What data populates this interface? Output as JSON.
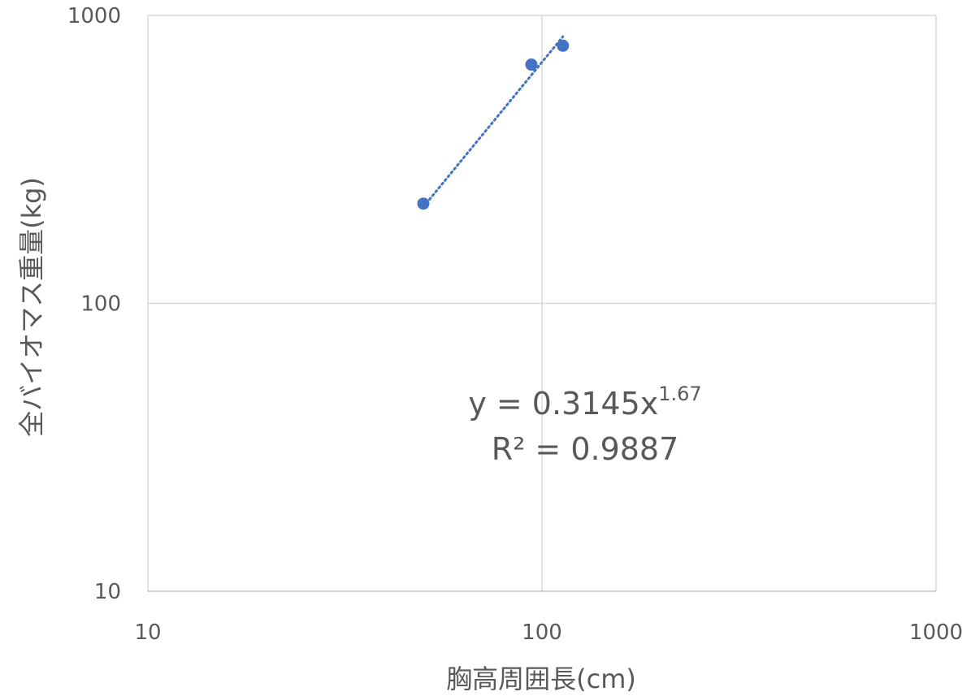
{
  "chart_data": {
    "type": "scatter",
    "xlabel": "胸高周囲長(cm)",
    "ylabel": "全バイオマス重量(kg)",
    "x_scale": "log",
    "y_scale": "log",
    "xlim": [
      10,
      1000
    ],
    "ylim": [
      10,
      1000
    ],
    "x_ticks": [
      "10",
      "100",
      "1000"
    ],
    "y_ticks": [
      "10",
      "100",
      "1000"
    ],
    "grid": true,
    "legend": "none",
    "series": [
      {
        "color": "#4472C4",
        "points": [
          {
            "x": 50,
            "y": 222
          },
          {
            "x": 94,
            "y": 675
          },
          {
            "x": 113,
            "y": 785
          }
        ]
      }
    ],
    "trendline": {
      "type": "power",
      "coefficient": 0.3145,
      "exponent": 1.67,
      "x_range": [
        50,
        113
      ],
      "color": "#4472C4",
      "style": "dotted",
      "equation_base": "y = 0.3145x",
      "equation_exponent": "1.67",
      "r_squared_label": "R² = 0.9887"
    }
  }
}
